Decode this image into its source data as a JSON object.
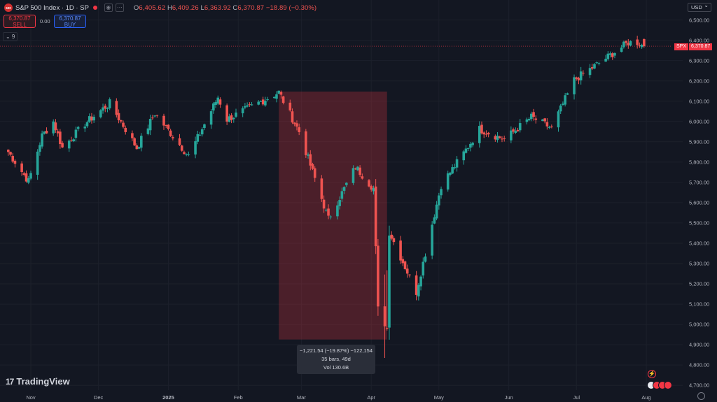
{
  "header": {
    "logo_text": "500",
    "symbol": "S&P 500 Index · 1D · SP",
    "ohlc": {
      "o_key": "O",
      "o": "6,405.62",
      "h_key": "H",
      "h": "6,409.26",
      "l_key": "L",
      "l": "6,363.92",
      "c_key": "C",
      "c": "6,370.87",
      "change": "−18.89 (−0.30%)"
    },
    "icons": [
      "eye-icon",
      "more-icon"
    ]
  },
  "trade": {
    "sell_price": "6,370.87",
    "sell_label": "SELL",
    "spread": "0.00",
    "buy_price": "6,370.87",
    "buy_label": "BUY"
  },
  "indicator_toggle": "⌄ 9",
  "currency": "USD",
  "price_tag": {
    "symbol": "SPX",
    "value": "6,370.87"
  },
  "measure": {
    "line1": "−1,221.54 (−19.87%) −122,154",
    "line2": "35 bars, 49d",
    "line3": "Vol 130.6B",
    "start_date": "2025-02-19",
    "end_date": "2025-04-08",
    "high": 6147.43,
    "low": 4925.89
  },
  "brand": "TradingView",
  "colors": {
    "up": "#26a69a",
    "down": "#ef5350",
    "background": "#131722",
    "measure_fill": "#f2364540"
  },
  "chart_data": {
    "type": "candlestick",
    "x_axis": [
      "Nov",
      "Dec",
      "2025",
      "Feb",
      "Mar",
      "Apr",
      "May",
      "Jun",
      "Jul",
      "Aug"
    ],
    "y_axis": [
      "4,700.00",
      "4,800.00",
      "4,900.00",
      "5,000.00",
      "5,100.00",
      "5,200.00",
      "5,300.00",
      "5,400.00",
      "5,500.00",
      "5,600.00",
      "5,700.00",
      "5,800.00",
      "5,900.00",
      "6,000.00",
      "6,100.00",
      "6,200.00",
      "6,300.00",
      "6,400.00",
      "6,500.00"
    ],
    "ylim": [
      4700,
      6500
    ],
    "last_price": 6370.87,
    "key_points": [
      [
        "2024-10-22",
        5850
      ],
      [
        "2024-10-31",
        5705
      ],
      [
        "2024-11-06",
        5930
      ],
      [
        "2024-11-11",
        6000
      ],
      [
        "2024-11-15",
        5870
      ],
      [
        "2024-11-25",
        5990
      ],
      [
        "2024-12-06",
        6090
      ],
      [
        "2024-12-18",
        5870
      ],
      [
        "2024-12-26",
        6040
      ],
      [
        "2025-01-10",
        5830
      ],
      [
        "2025-01-23",
        6120
      ],
      [
        "2025-01-27",
        6010
      ],
      [
        "2025-02-19",
        6144
      ],
      [
        "2025-02-28",
        5950
      ],
      [
        "2025-03-13",
        5520
      ],
      [
        "2025-03-25",
        5777
      ],
      [
        "2025-04-02",
        5670
      ],
      [
        "2025-04-04",
        5075
      ],
      [
        "2025-04-08",
        4982
      ],
      [
        "2025-04-09",
        5456
      ],
      [
        "2025-04-21",
        5160
      ],
      [
        "2025-05-02",
        5687
      ],
      [
        "2025-05-12",
        5844
      ],
      [
        "2025-05-19",
        5963
      ],
      [
        "2025-05-30",
        5912
      ],
      [
        "2025-06-11",
        6022
      ],
      [
        "2025-06-20",
        5967
      ],
      [
        "2025-06-30",
        6205
      ],
      [
        "2025-07-10",
        6280
      ],
      [
        "2025-07-24",
        6389
      ],
      [
        "2025-07-28",
        6390
      ],
      [
        "2025-07-31",
        6370
      ]
    ]
  }
}
